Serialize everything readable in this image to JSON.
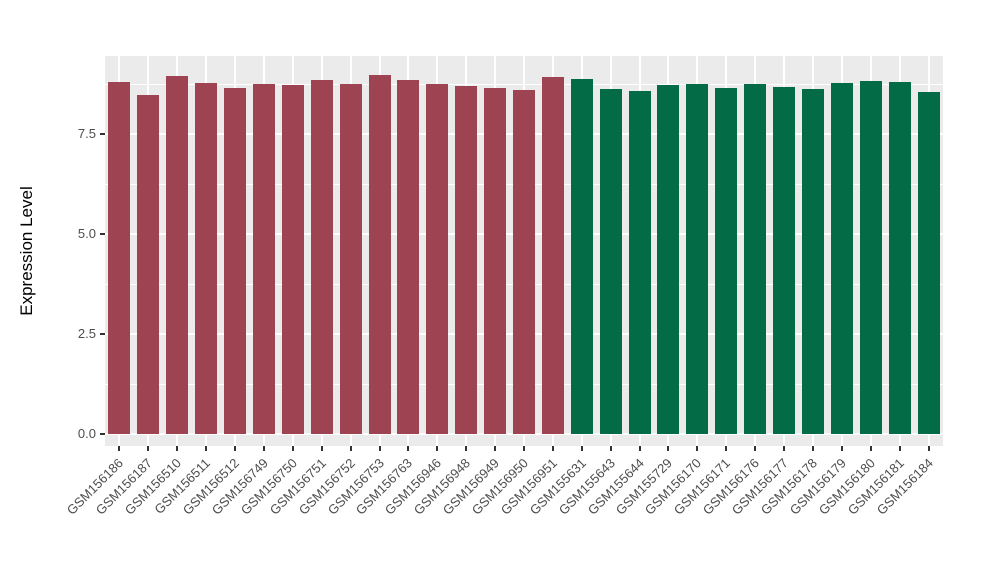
{
  "chart_data": {
    "type": "bar",
    "title": "",
    "xlabel": "",
    "ylabel": "Expression Level",
    "ylim": [
      0,
      9.45
    ],
    "ytick_values": [
      0,
      2.5,
      5,
      7.5
    ],
    "ytick_labels": [
      "0.0",
      "2.5",
      "5.0",
      "7.5"
    ],
    "minor_ytick_values": [
      1.25,
      3.75,
      6.25,
      8.75
    ],
    "grid": true,
    "legend_position": "none",
    "panel_background": "#EBEBEB",
    "grid_color": "#FFFFFF",
    "axis_text_color": "#4D4D4D",
    "axis_title_color": "#000000",
    "bar_colors": {
      "maroon": "#9D4351",
      "green": "#046B47"
    },
    "categories": [
      "GSM156186",
      "GSM156187",
      "GSM156510",
      "GSM156511",
      "GSM156512",
      "GSM156749",
      "GSM156750",
      "GSM156751",
      "GSM156752",
      "GSM156753",
      "GSM156763",
      "GSM156946",
      "GSM156948",
      "GSM156949",
      "GSM156950",
      "GSM156951",
      "GSM155631",
      "GSM155643",
      "GSM155644",
      "GSM155729",
      "GSM156170",
      "GSM156171",
      "GSM156176",
      "GSM156177",
      "GSM156178",
      "GSM156179",
      "GSM156180",
      "GSM156181",
      "GSM156184"
    ],
    "groups": [
      "maroon",
      "maroon",
      "maroon",
      "maroon",
      "maroon",
      "maroon",
      "maroon",
      "maroon",
      "maroon",
      "maroon",
      "maroon",
      "maroon",
      "maroon",
      "maroon",
      "maroon",
      "maroon",
      "green",
      "green",
      "green",
      "green",
      "green",
      "green",
      "green",
      "green",
      "green",
      "green",
      "green",
      "green",
      "green"
    ],
    "series": [
      {
        "name": "Expression Level",
        "values": [
          8.8,
          8.48,
          8.94,
          8.78,
          8.64,
          8.74,
          8.73,
          8.86,
          8.75,
          8.98,
          8.86,
          8.74,
          8.7,
          8.65,
          8.61,
          8.93,
          8.88,
          8.63,
          8.57,
          8.72,
          8.76,
          8.65,
          8.76,
          8.67,
          8.63,
          8.78,
          8.82,
          8.79,
          8.56
        ]
      }
    ]
  }
}
